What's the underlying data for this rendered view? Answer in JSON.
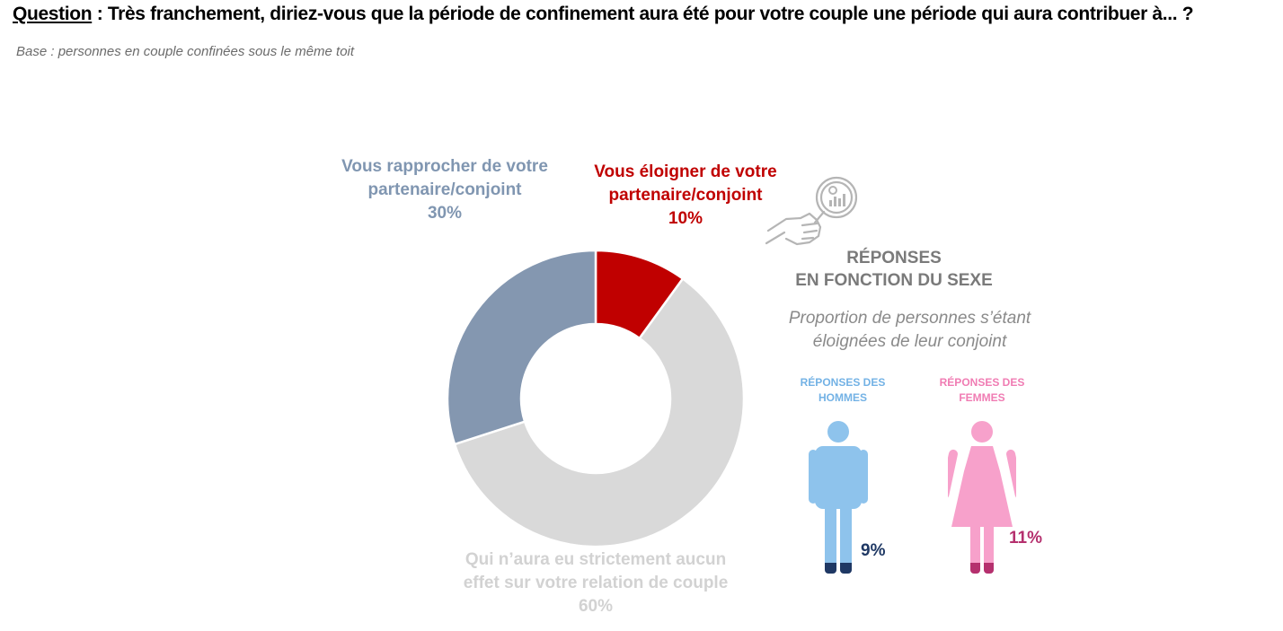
{
  "header": {
    "question_label": "Question",
    "question_text": " : Très franchement, diriez-vous que la période de confinement aura été pour votre couple une période qui aura contribuer à... ?",
    "base": "Base : personnes en couple confinées sous le même toit"
  },
  "chart_data": [
    {
      "type": "pie",
      "donut": true,
      "slices": [
        {
          "label": "Vous éloigner de votre partenaire/conjoint",
          "value": 10,
          "value_label": "10%",
          "color": "#c00000"
        },
        {
          "label": "Qui n'aura eu strictement aucun effet sur votre relation de couple",
          "value": 60,
          "value_label": "60%",
          "color": "#d9d9d9"
        },
        {
          "label": "Vous rapprocher de votre partenaire/conjoint",
          "value": 30,
          "value_label": "30%",
          "color": "#8497b0"
        }
      ]
    },
    {
      "type": "pictograph",
      "title": "RÉPONSES EN FONCTION DU SEXE",
      "subtitle": "Proportion de personnes s’étant éloignées de leur conjoint",
      "categories": [
        "RÉPONSES DES HOMMES",
        "RÉPONSES DES FEMMES"
      ],
      "values": [
        9,
        11
      ],
      "value_labels": [
        "9%",
        "11%"
      ],
      "colors": {
        "men": "#8ec3ec",
        "men_feet": "#1f3864",
        "women": "#f7a1cb",
        "women_feet": "#b5306e"
      }
    }
  ],
  "labels": {
    "rapprocher_line1": "Vous rapprocher de votre",
    "rapprocher_line2": "partenaire/conjoint",
    "rapprocher_pct": "30%",
    "eloigner_line1": "Vous éloigner de votre",
    "eloigner_line2": "partenaire/conjoint",
    "eloigner_pct": "10%",
    "aucun_line1": "Qui n’aura eu strictement aucun",
    "aucun_line2": "effet sur votre relation de couple",
    "aucun_pct": "60%"
  },
  "side": {
    "title_line1": "RÉPONSES",
    "title_line2": "EN FONCTION DU SEXE",
    "subtitle_line1": "Proportion de personnes s’étant",
    "subtitle_line2": "éloignées de leur conjoint",
    "men_line1": "RÉPONSES DES",
    "men_line2": "HOMMES",
    "women_line1": "RÉPONSES DES",
    "women_line2": "FEMMES",
    "men_pct": "9%",
    "women_pct": "11%"
  },
  "icons": {
    "magnifier": "magnifier-chart-icon",
    "man": "man-icon",
    "woman": "woman-icon"
  }
}
